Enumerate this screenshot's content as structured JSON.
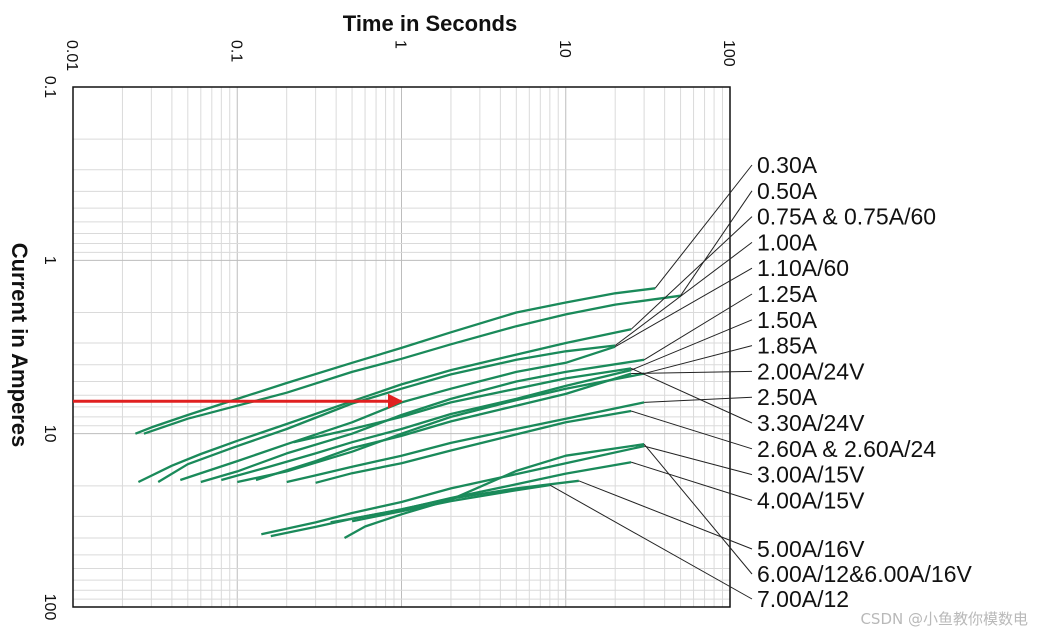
{
  "chart_data": {
    "type": "line",
    "title": "Time in Seconds",
    "xlabel": "Time in Seconds",
    "ylabel": "Current in Amperes",
    "x_scale": "log",
    "y_scale": "log",
    "y_inverted": true,
    "xlim": [
      0.01,
      100
    ],
    "ylim": [
      0.1,
      100
    ],
    "x_ticks": [
      "0.01",
      "0.1",
      "1",
      "10",
      "100"
    ],
    "y_ticks": [
      "0.1",
      "1",
      "10",
      "100"
    ],
    "grid": true,
    "line_color": "#1a8a5a",
    "series": [
      {
        "name": "0.30A",
        "points": [
          [
            0.024,
            10
          ],
          [
            0.03,
            9.2
          ],
          [
            0.05,
            7.8
          ],
          [
            0.1,
            6.3
          ],
          [
            0.2,
            5.1
          ],
          [
            0.5,
            3.9
          ],
          [
            1,
            3.2
          ],
          [
            2,
            2.6
          ],
          [
            5,
            2.0
          ],
          [
            10,
            1.75
          ],
          [
            20,
            1.55
          ],
          [
            35,
            1.45
          ]
        ]
      },
      {
        "name": "0.50A",
        "points": [
          [
            0.027,
            10
          ],
          [
            0.05,
            8.2
          ],
          [
            0.1,
            6.9
          ],
          [
            0.2,
            5.8
          ],
          [
            0.5,
            4.4
          ],
          [
            1,
            3.7
          ],
          [
            2,
            3.05
          ],
          [
            5,
            2.4
          ],
          [
            10,
            2.05
          ],
          [
            20,
            1.8
          ],
          [
            50,
            1.6
          ]
        ]
      },
      {
        "name": "0.75A & 0.75A/60",
        "points": [
          [
            0.025,
            19
          ],
          [
            0.04,
            15.3
          ],
          [
            0.06,
            13.1
          ],
          [
            0.1,
            11
          ],
          [
            0.2,
            8.8
          ],
          [
            0.5,
            6.5
          ],
          [
            1,
            5.2
          ],
          [
            2,
            4.3
          ],
          [
            5,
            3.5
          ],
          [
            10,
            3.0
          ],
          [
            25,
            2.5
          ]
        ]
      },
      {
        "name": "1.00A",
        "points": [
          [
            0.033,
            19
          ],
          [
            0.05,
            15
          ],
          [
            0.1,
            11.8
          ],
          [
            0.2,
            9.4
          ],
          [
            0.5,
            6.7
          ],
          [
            1,
            5.5
          ],
          [
            2,
            4.55
          ],
          [
            5,
            3.75
          ],
          [
            10,
            3.35
          ],
          [
            20,
            3.1
          ]
        ]
      },
      {
        "name": "1.10A/60",
        "points": [
          [
            0.045,
            18.5
          ],
          [
            0.1,
            14.4
          ],
          [
            0.2,
            11.5
          ],
          [
            0.5,
            8.6
          ],
          [
            1,
            6.6
          ],
          [
            2,
            5.5
          ],
          [
            5,
            4.4
          ],
          [
            10,
            3.9
          ],
          [
            20,
            3.15
          ]
        ]
      },
      {
        "name": "1.25A",
        "points": [
          [
            0.06,
            19
          ],
          [
            0.1,
            16.5
          ],
          [
            0.2,
            13
          ],
          [
            0.5,
            10
          ],
          [
            1,
            7.8
          ],
          [
            2,
            6.3
          ],
          [
            5,
            5.0
          ],
          [
            10,
            4.4
          ],
          [
            30,
            3.75
          ]
        ]
      },
      {
        "name": "1.50A",
        "points": [
          [
            0.08,
            18.5
          ],
          [
            0.15,
            15.7
          ],
          [
            0.3,
            13
          ],
          [
            0.5,
            11.2
          ],
          [
            1,
            9.4
          ],
          [
            2,
            7.7
          ],
          [
            5,
            6.3
          ],
          [
            10,
            5.3
          ],
          [
            25,
            4.3
          ]
        ]
      },
      {
        "name": "1.85A",
        "points": [
          [
            0.1,
            19
          ],
          [
            0.2,
            16.5
          ],
          [
            0.5,
            12.7
          ],
          [
            1,
            10
          ],
          [
            2,
            8
          ],
          [
            5,
            6.4
          ],
          [
            10,
            5.5
          ],
          [
            30,
            4.5
          ]
        ]
      },
      {
        "name": "2.00A/24V",
        "points": [
          [
            0.13,
            18.5
          ],
          [
            0.3,
            14.4
          ],
          [
            0.5,
            12.1
          ],
          [
            1,
            10.3
          ],
          [
            2,
            8.5
          ],
          [
            5,
            6.9
          ],
          [
            10,
            5.9
          ],
          [
            25,
            4.5
          ]
        ]
      },
      {
        "name": "2.50A",
        "points": [
          [
            0.2,
            19
          ],
          [
            0.3,
            17.4
          ],
          [
            0.5,
            15.5
          ],
          [
            1,
            13.4
          ],
          [
            2,
            11.3
          ],
          [
            5,
            9.4
          ],
          [
            10,
            8.2
          ],
          [
            30,
            6.6
          ]
        ]
      },
      {
        "name": "3.30A/24V",
        "points": [
          [
            0.22,
            11.2
          ],
          [
            0.5,
            9.4
          ],
          [
            1,
            8
          ],
          [
            2,
            6.6
          ],
          [
            5,
            5.5
          ],
          [
            10,
            4.8
          ],
          [
            25,
            4.2
          ]
        ]
      },
      {
        "name": "2.60A & 2.60A/24",
        "points": [
          [
            0.3,
            19.2
          ],
          [
            0.5,
            16.9
          ],
          [
            1,
            14.8
          ],
          [
            2,
            12.5
          ],
          [
            5,
            10.1
          ],
          [
            10,
            8.6
          ],
          [
            25,
            7.4
          ]
        ]
      },
      {
        "name": "3.00A/15V",
        "points": [
          [
            0.14,
            38
          ],
          [
            0.3,
            32.5
          ],
          [
            0.5,
            28.7
          ],
          [
            1,
            24.8
          ],
          [
            2,
            20.7
          ],
          [
            5,
            17.1
          ],
          [
            10,
            14.8
          ],
          [
            30,
            11.8
          ]
        ]
      },
      {
        "name": "4.00A/15V",
        "points": [
          [
            0.16,
            39
          ],
          [
            0.3,
            34.5
          ],
          [
            0.5,
            31
          ],
          [
            1,
            27.4
          ],
          [
            2,
            23.5
          ],
          [
            5,
            19.6
          ],
          [
            10,
            17
          ],
          [
            25,
            14.6
          ]
        ]
      },
      {
        "name": "5.00A/16V",
        "points": [
          [
            0.37,
            32.4
          ],
          [
            0.5,
            31
          ],
          [
            1,
            27.3
          ],
          [
            2,
            23.7
          ],
          [
            5,
            20.7
          ],
          [
            12,
            18.7
          ]
        ]
      },
      {
        "name": "6.00A/12&6.00A/16V",
        "points": [
          [
            0.45,
            40
          ],
          [
            0.6,
            34.3
          ],
          [
            1,
            29.2
          ],
          [
            2,
            24
          ],
          [
            5,
            16.4
          ],
          [
            10,
            13.4
          ],
          [
            30,
            11.5
          ]
        ]
      },
      {
        "name": "7.00A/12",
        "points": [
          [
            0.5,
            32
          ],
          [
            1,
            28
          ],
          [
            2,
            24.5
          ],
          [
            5,
            21.2
          ],
          [
            8,
            19.8
          ]
        ]
      }
    ],
    "annotations": [
      {
        "type": "arrow",
        "color": "#e02020",
        "from": [
          0.01,
          6.5
        ],
        "to": [
          1,
          6.5
        ]
      }
    ]
  },
  "watermark": "CSDN @小鱼教你模数电"
}
